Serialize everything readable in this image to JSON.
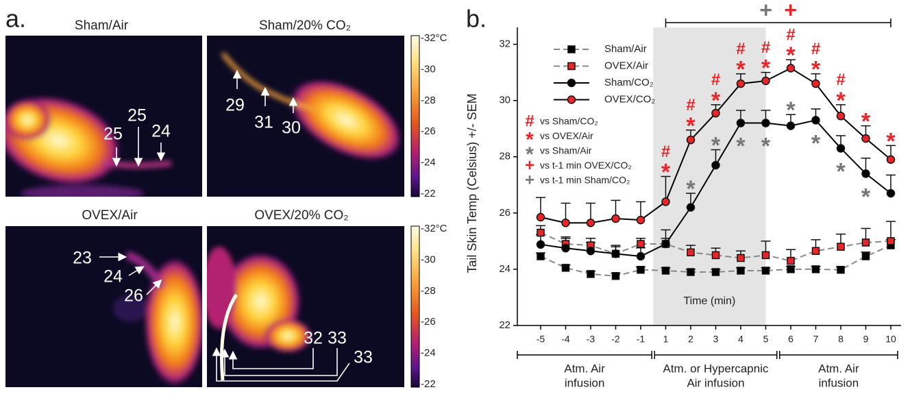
{
  "panel_a": {
    "label": "a.",
    "panels": [
      {
        "title": "Sham/Air",
        "temps": [
          "25",
          "25",
          "24"
        ]
      },
      {
        "title": "Sham/20% CO₂",
        "temps": [
          "29",
          "31",
          "30"
        ]
      },
      {
        "title": "OVEX/Air",
        "temps": [
          "23",
          "24",
          "26"
        ]
      },
      {
        "title": "OVEX/20% CO₂",
        "temps": [
          "32",
          "33",
          "33"
        ]
      }
    ],
    "colorbar_ticks": [
      "-32°C",
      "-30",
      "-28",
      "-26",
      "-24",
      "-22"
    ]
  },
  "chart_data": {
    "type": "line",
    "panel_label": "b.",
    "y_label": "Tail Skin Temp (Celsius) +/- SEM",
    "x_label": "Time (min)",
    "categories": [
      "-5",
      "-4",
      "-3",
      "-2",
      "-1",
      "1",
      "2",
      "3",
      "4",
      "5",
      "6",
      "7",
      "8",
      "9",
      "10"
    ],
    "ylim": [
      22,
      32.6
    ],
    "yticks": [
      22,
      24,
      26,
      28,
      30,
      32
    ],
    "series": [
      {
        "name": "Sham/Air",
        "color": "#888888",
        "dashed": true,
        "marker": "square",
        "marker_color": "#000000",
        "values": [
          24.46,
          24.05,
          23.83,
          23.76,
          23.98,
          23.95,
          23.9,
          23.9,
          23.95,
          23.95,
          24.0,
          24.0,
          23.98,
          24.46,
          24.85
        ],
        "errors": [
          0.12,
          0.1,
          0.1,
          0.1,
          0.1,
          0.1,
          0.1,
          0.1,
          0.1,
          0.1,
          0.1,
          0.1,
          0.1,
          0.15,
          0.2
        ]
      },
      {
        "name": "OVEX/Air",
        "color": "#888888",
        "dashed": true,
        "marker": "square",
        "marker_color": "#e8262a",
        "values": [
          25.3,
          24.9,
          24.85,
          24.55,
          24.9,
          24.9,
          24.6,
          24.5,
          24.4,
          24.5,
          24.3,
          24.65,
          24.8,
          24.95,
          25.0
        ],
        "errors": [
          0.25,
          0.25,
          0.25,
          0.25,
          0.2,
          0.2,
          0.25,
          0.25,
          0.25,
          0.5,
          0.4,
          0.4,
          0.45,
          0.5,
          0.7
        ]
      },
      {
        "name": "Sham/CO₂",
        "color": "#000000",
        "dashed": false,
        "marker": "circle",
        "marker_color": "#000000",
        "values": [
          24.88,
          24.75,
          24.65,
          24.55,
          24.46,
          24.9,
          26.2,
          27.7,
          29.2,
          29.2,
          29.1,
          29.3,
          28.3,
          27.4,
          26.7
        ],
        "errors": [
          0.35,
          0.35,
          0.3,
          0.3,
          0.3,
          0.5,
          0.5,
          0.55,
          0.45,
          0.45,
          0.4,
          0.4,
          0.45,
          0.55,
          0.65
        ]
      },
      {
        "name": "OVEX/CO₂",
        "color": "#000000",
        "dashed": false,
        "marker": "circle",
        "marker_color": "#e8262a",
        "values": [
          25.85,
          25.65,
          25.65,
          25.8,
          25.75,
          26.4,
          28.6,
          29.55,
          30.6,
          30.7,
          31.15,
          30.6,
          29.45,
          28.65,
          27.9
        ],
        "errors": [
          0.7,
          0.7,
          0.7,
          0.65,
          0.65,
          0.9,
          0.35,
          0.3,
          0.35,
          0.3,
          0.3,
          0.35,
          0.4,
          0.45,
          0.5
        ]
      }
    ],
    "symbol_legend": [
      {
        "symbol": "#",
        "color": "#e8262a",
        "label": "vs Sham/CO₂"
      },
      {
        "symbol": "*",
        "color": "#e8262a",
        "label": "vs OVEX/Air"
      },
      {
        "symbol": "*",
        "color": "#777777",
        "label": "vs Sham/Air"
      },
      {
        "symbol": "+",
        "color": "#e8262a",
        "label": "vs t-1 min OVEX/CO₂"
      },
      {
        "symbol": "+",
        "color": "#777777",
        "label": "vs t-1 min Sham/CO₂"
      }
    ],
    "significance": [
      {
        "category": "1",
        "keys": [
          0,
          1
        ]
      },
      {
        "category": "2",
        "keys": [
          0,
          1,
          2
        ]
      },
      {
        "category": "3",
        "keys": [
          0,
          1,
          2
        ]
      },
      {
        "category": "4",
        "keys": [
          0,
          1,
          2
        ]
      },
      {
        "category": "5",
        "keys": [
          0,
          1,
          2
        ]
      },
      {
        "category": "6",
        "keys": [
          0,
          1,
          2
        ]
      },
      {
        "category": "7",
        "keys": [
          0,
          1,
          2
        ]
      },
      {
        "category": "8",
        "keys": [
          0,
          1,
          2
        ]
      },
      {
        "category": "9",
        "keys": [
          1,
          2
        ]
      },
      {
        "category": "10",
        "keys": [
          1
        ]
      }
    ],
    "bracket": {
      "from": "1",
      "to": "10",
      "keys": [
        4,
        3
      ]
    },
    "shaded": {
      "from": "1",
      "to": "5"
    },
    "phases": [
      {
        "from": "-5",
        "to": "-1",
        "label": [
          "Atm. Air",
          "infusion"
        ]
      },
      {
        "from": "1",
        "to": "5",
        "label": [
          "Atm. or Hypercapnic",
          "Air infusion"
        ]
      },
      {
        "from": "6",
        "to": "10",
        "label": [
          "Atm. Air",
          "infusion"
        ]
      }
    ]
  }
}
